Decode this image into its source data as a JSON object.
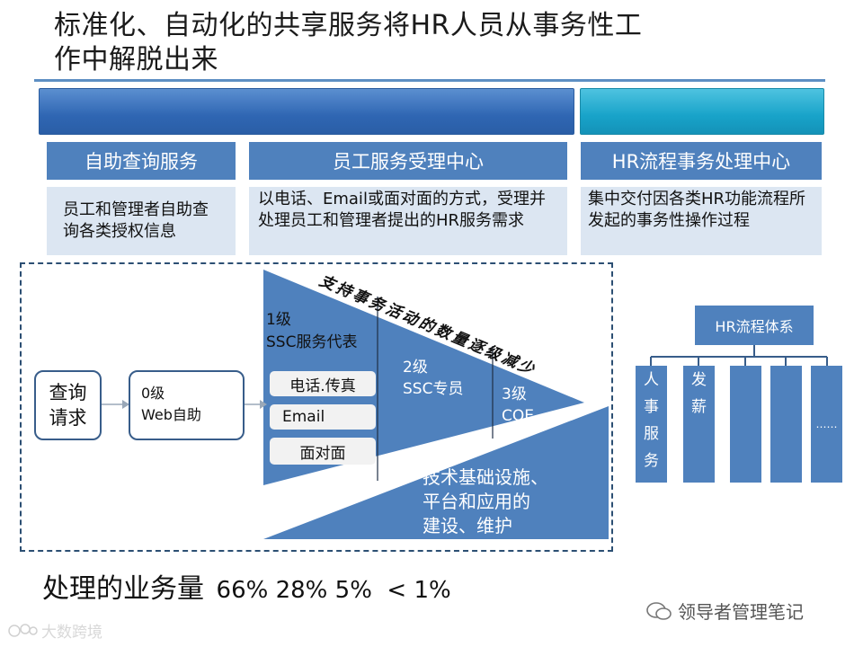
{
  "title_line1": "标准化、自动化的共享服务将HR人员从事务性工",
  "title_line2": "作中解脱出来",
  "columns": [
    {
      "header": "自助查询服务",
      "desc": "员工和管理者自助查询各类授权信息"
    },
    {
      "header": "员工服务受理中心",
      "desc": "以电话、Email或面对面的方式，受理并处理员工和管理者提出的HR服务需求"
    },
    {
      "header": "HR流程事务处理中心",
      "desc": "集中交付因各类HR功能流程所发起的事务性操作过程"
    }
  ],
  "query_box": "查询请求",
  "level0": {
    "line1": "0级",
    "line2": "Web自助"
  },
  "level1": {
    "line1": "1级",
    "line2": "SSC服务代表"
  },
  "channels": [
    "电话.传真",
    "Email",
    "面对面"
  ],
  "level2": {
    "line1": "2级",
    "line2": "SSC专员"
  },
  "level3": {
    "line1": "3级",
    "line2": "COE"
  },
  "curved_text": "支持事务活动的数量逐级减少",
  "infra": [
    "技术基础设施、",
    "平台和应用的",
    "建设、维护"
  ],
  "hr_system": {
    "root": "HR流程体系",
    "col1": [
      "人",
      "事",
      "服",
      "务"
    ],
    "col2": [
      "",
      "发",
      "薪",
      ""
    ],
    "last": "……"
  },
  "footer": {
    "label": "处理的业务量",
    "values": "66% 28% 5%  < 1%"
  },
  "watermark_right": "领导者管理笔记",
  "watermark_left": "大数跨境",
  "colors": {
    "primary": "#4f81bd",
    "dark": "#385d8a",
    "cyan": "#18a3c9",
    "light": "#dce6f2"
  }
}
